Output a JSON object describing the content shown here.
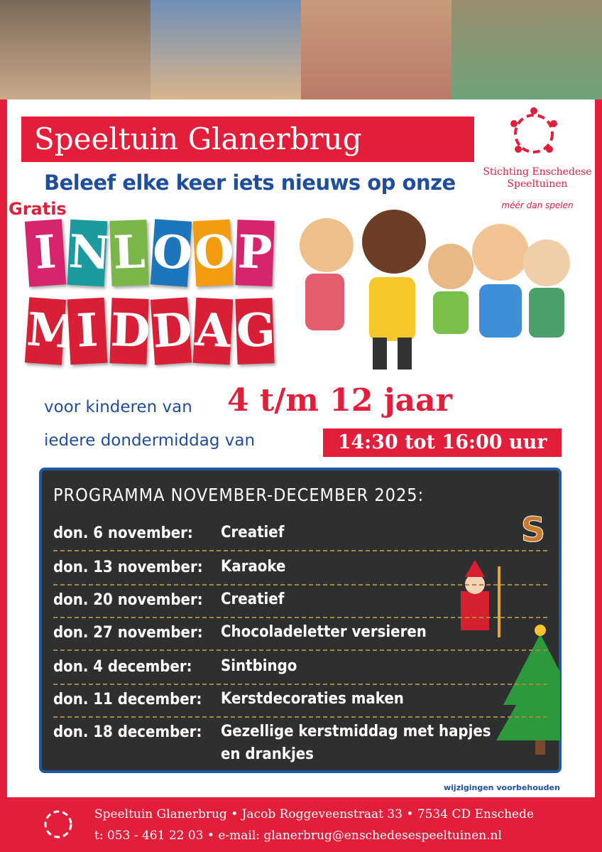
{
  "header": {
    "title": "Speeltuin Glanerbrug",
    "organisation": "Stichting Enschedese Speeltuinen",
    "slogan": "méér dan spelen"
  },
  "intro": {
    "tagline": "Beleef elke keer iets nieuws op onze",
    "free": "Gratis",
    "word1": [
      "I",
      "N",
      "L",
      "O",
      "O",
      "P"
    ],
    "word2": [
      "M",
      "I",
      "D",
      "D",
      "A",
      "G"
    ]
  },
  "details": {
    "age_prefix": "voor kinderen van",
    "age": "4 t/m 12 jaar",
    "day_prefix": "iedere dondermiddag van",
    "time": "14:30 tot 16:00 uur"
  },
  "program": {
    "title": "PROGRAMMA NOVEMBER-DECEMBER 2025:",
    "rows": [
      [
        "don. 6 november:",
        "Creatief"
      ],
      [
        "don. 13 november:",
        "Karaoke"
      ],
      [
        "don. 20 november:",
        "Creatief"
      ],
      [
        "don. 27 november:",
        "Chocoladeletter versieren"
      ],
      [
        "don. 4 december:",
        "Sintbingo"
      ],
      [
        "don. 11 december:",
        "Kerstdecoraties maken"
      ],
      [
        "don. 18 december:",
        "Gezellige kerstmiddag met hapjes en drankjes"
      ]
    ],
    "note": "wijzigingen voorbehouden"
  },
  "footer": {
    "address": "Speeltuin Glanerbrug • Jacob Roggeveenstraat 33 • 7534 CD Enschede",
    "contact": "t: 053 - 461 22 03 • e-mail: glanerbrug@enschedesespeeltuinen.nl"
  }
}
